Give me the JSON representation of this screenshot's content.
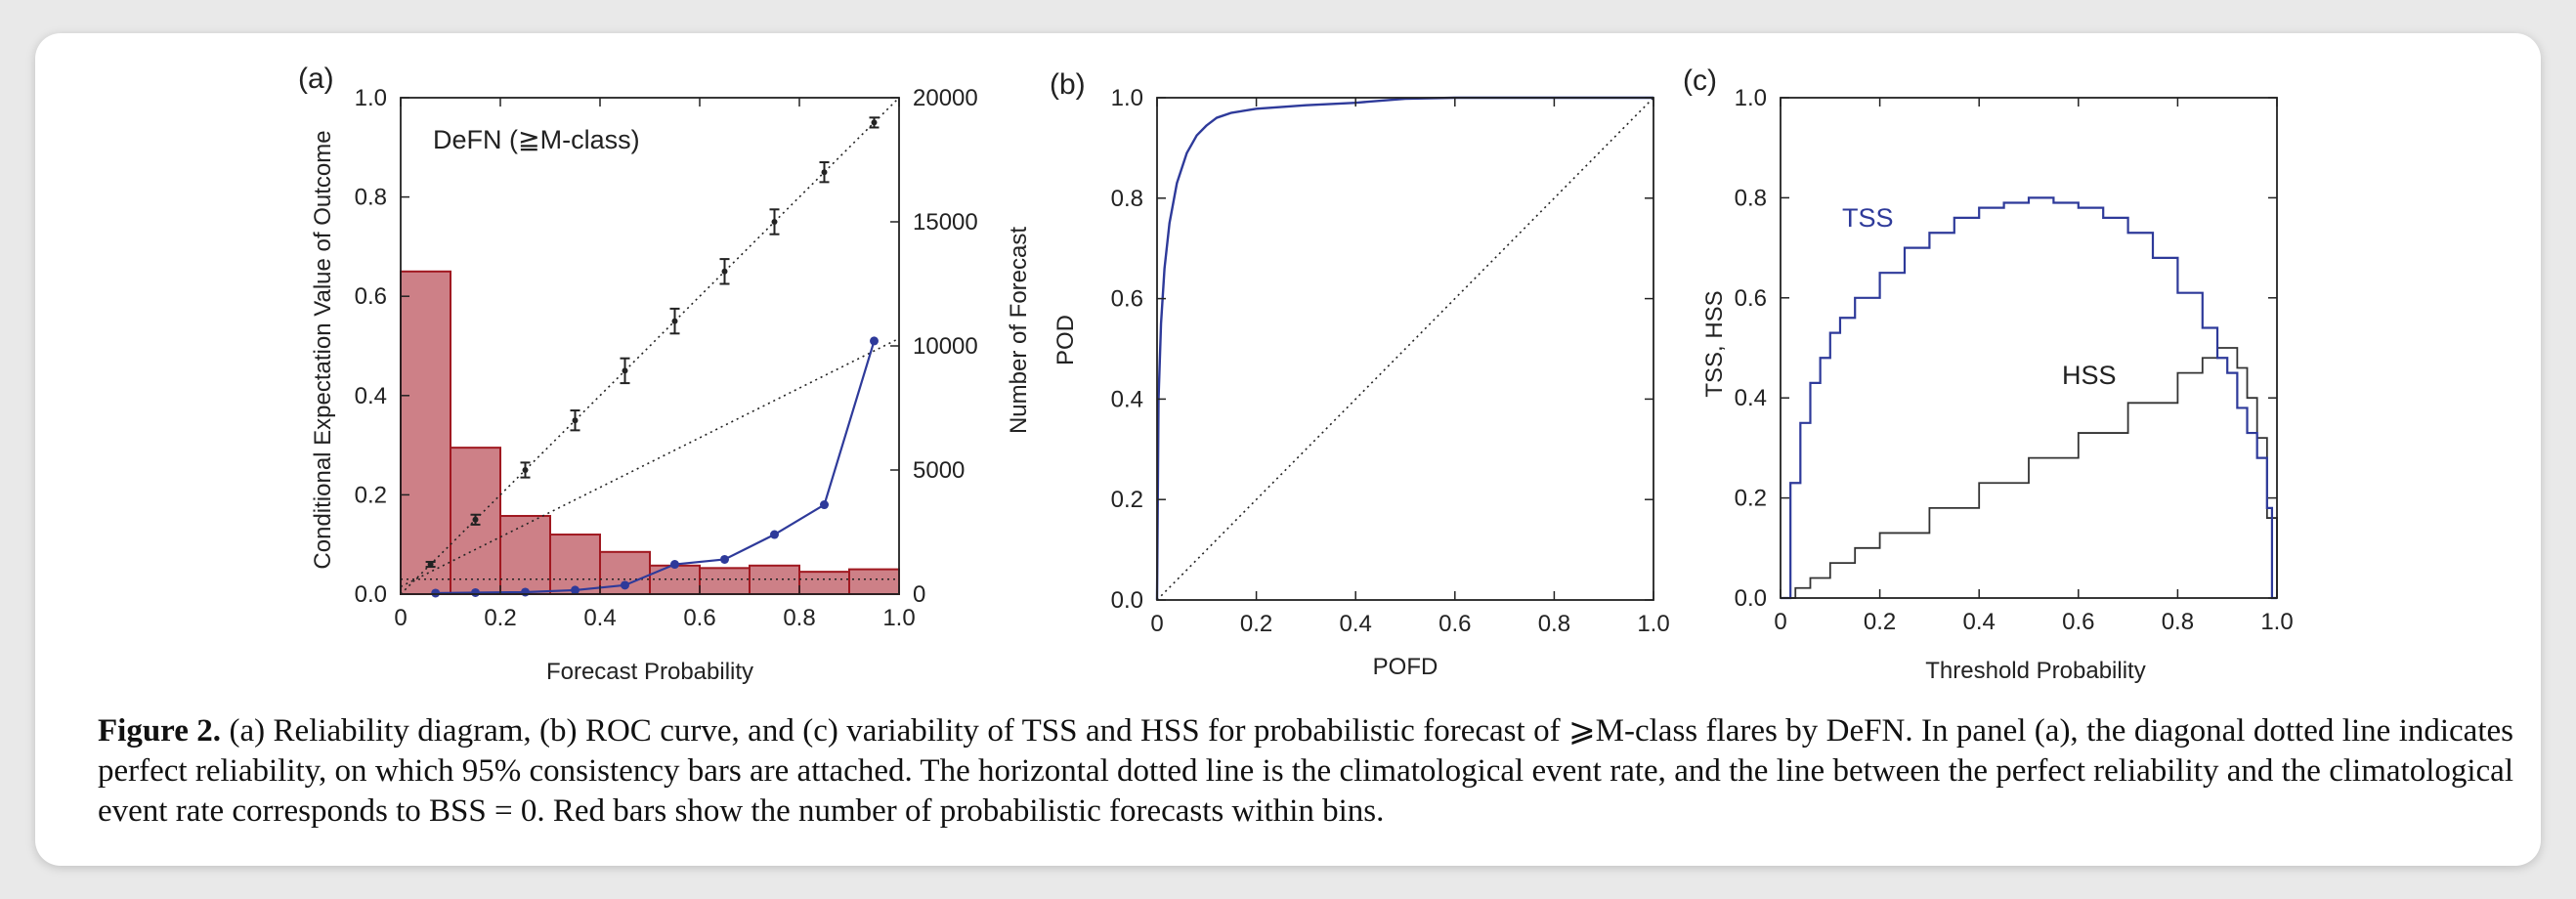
{
  "caption": {
    "label": "Figure 2.",
    "text": "(a) Reliability diagram, (b) ROC curve, and (c) variability of TSS and HSS for probabilistic forecast of ⩾M-class flares by DeFN. In panel (a), the diagonal dotted line indicates perfect reliability, on which 95% consistency bars are attached. The horizontal dotted line is the climatological event rate, and the line between the perfect reliability and the climatological event rate corresponds to BSS = 0. Red bars show the number of probabilistic forecasts within bins."
  },
  "colors": {
    "hist_fill": "#cd8087",
    "hist_edge": "#a01820",
    "curve": "#2e3a9a",
    "ink": "#222222"
  },
  "chart_data": [
    {
      "panel_label": "(a)",
      "type": "bar",
      "title": "DeFN  (≧M-class)",
      "xlabel": "Forecast Probability",
      "ylabel": "Conditional Expectation Value of Outcome",
      "y2label": "Number of Forecast",
      "xlim": [
        0,
        1
      ],
      "ylim": [
        0,
        1
      ],
      "y2lim": [
        0,
        20000
      ],
      "xticks": [
        "0",
        "0.2",
        "0.4",
        "0.6",
        "0.8",
        "1.0"
      ],
      "yticks": [
        "0.0",
        "0.2",
        "0.4",
        "0.6",
        "0.8",
        "1.0"
      ],
      "y2ticks": [
        "0",
        "5000",
        "10000",
        "15000",
        "20000"
      ],
      "histogram": {
        "name": "Number of forecasts",
        "bin_edges": [
          0,
          0.1,
          0.2,
          0.3,
          0.4,
          0.5,
          0.6,
          0.7,
          0.8,
          0.9,
          1.0
        ],
        "counts": [
          13000,
          5900,
          3150,
          2400,
          1700,
          1150,
          1050,
          1150,
          900,
          1000
        ]
      },
      "reliability": {
        "name": "Perfect reliability with 95% consistency bars",
        "x": [
          0.06,
          0.15,
          0.25,
          0.35,
          0.45,
          0.55,
          0.65,
          0.75,
          0.85,
          0.95
        ],
        "y": [
          0.06,
          0.15,
          0.25,
          0.35,
          0.45,
          0.55,
          0.65,
          0.75,
          0.85,
          0.95
        ],
        "err": [
          0.005,
          0.01,
          0.015,
          0.02,
          0.025,
          0.025,
          0.025,
          0.025,
          0.02,
          0.01
        ]
      },
      "climatology_rate": 0.03,
      "bss_zero_line": [
        [
          0,
          0.015
        ],
        [
          1,
          0.515
        ]
      ],
      "observed": {
        "name": "Observed frequency",
        "x": [
          0.07,
          0.15,
          0.25,
          0.35,
          0.45,
          0.55,
          0.65,
          0.75,
          0.85,
          0.95
        ],
        "y": [
          0.002,
          0.003,
          0.004,
          0.008,
          0.018,
          0.06,
          0.07,
          0.12,
          0.18,
          0.51
        ]
      }
    },
    {
      "panel_label": "(b)",
      "type": "line",
      "xlabel": "POFD",
      "ylabel": "POD",
      "xlim": [
        0,
        1
      ],
      "ylim": [
        0,
        1
      ],
      "xticks": [
        "0",
        "0.2",
        "0.4",
        "0.6",
        "0.8",
        "1.0"
      ],
      "yticks": [
        "0.0",
        "0.2",
        "0.4",
        "0.6",
        "0.8",
        "1.0"
      ],
      "roc": {
        "x": [
          0,
          0.003,
          0.008,
          0.015,
          0.025,
          0.04,
          0.06,
          0.08,
          0.1,
          0.12,
          0.15,
          0.2,
          0.3,
          0.4,
          0.5,
          0.6,
          0.8,
          1.0
        ],
        "y": [
          0,
          0.4,
          0.55,
          0.66,
          0.75,
          0.83,
          0.89,
          0.925,
          0.945,
          0.96,
          0.97,
          0.978,
          0.985,
          0.99,
          0.998,
          1.0,
          1.0,
          1.0
        ]
      },
      "diagonal": [
        [
          0,
          0
        ],
        [
          1,
          1
        ]
      ]
    },
    {
      "panel_label": "(c)",
      "type": "line",
      "xlabel": "Threshold Probability",
      "ylabel": "TSS, HSS",
      "xlim": [
        0,
        1
      ],
      "ylim": [
        0,
        1
      ],
      "xticks": [
        "0",
        "0.2",
        "0.4",
        "0.6",
        "0.8",
        "1.0"
      ],
      "yticks": [
        "0.0",
        "0.2",
        "0.4",
        "0.6",
        "0.8",
        "1.0"
      ],
      "series": [
        {
          "name": "TSS",
          "step": true,
          "x": [
            0.0,
            0.02,
            0.04,
            0.06,
            0.08,
            0.1,
            0.12,
            0.15,
            0.2,
            0.25,
            0.3,
            0.35,
            0.4,
            0.45,
            0.5,
            0.55,
            0.6,
            0.65,
            0.7,
            0.75,
            0.8,
            0.85,
            0.88,
            0.9,
            0.92,
            0.94,
            0.96,
            0.98,
            0.99,
            1.0
          ],
          "y": [
            0.0,
            0.23,
            0.35,
            0.43,
            0.48,
            0.53,
            0.56,
            0.6,
            0.65,
            0.7,
            0.73,
            0.76,
            0.78,
            0.79,
            0.8,
            0.79,
            0.78,
            0.76,
            0.73,
            0.68,
            0.61,
            0.54,
            0.48,
            0.45,
            0.38,
            0.33,
            0.28,
            0.18,
            0.0,
            0.0
          ]
        },
        {
          "name": "HSS",
          "step": true,
          "x": [
            0.0,
            0.03,
            0.06,
            0.1,
            0.15,
            0.2,
            0.3,
            0.4,
            0.5,
            0.6,
            0.7,
            0.8,
            0.85,
            0.88,
            0.9,
            0.92,
            0.94,
            0.96,
            0.98,
            1.0
          ],
          "y": [
            0.0,
            0.02,
            0.04,
            0.07,
            0.1,
            0.13,
            0.18,
            0.23,
            0.28,
            0.33,
            0.39,
            0.45,
            0.48,
            0.5,
            0.5,
            0.46,
            0.4,
            0.32,
            0.16,
            0.0
          ]
        }
      ]
    }
  ]
}
